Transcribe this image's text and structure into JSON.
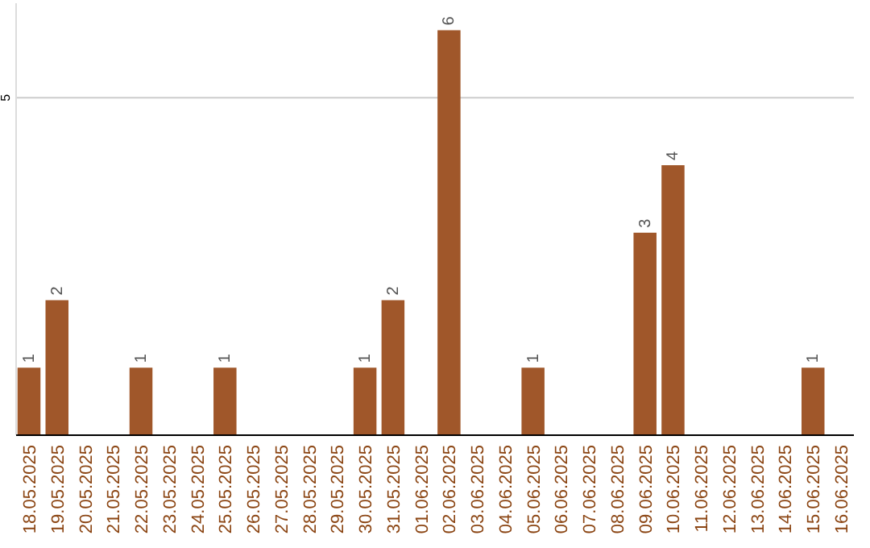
{
  "chart_data": {
    "type": "bar",
    "categories": [
      "18.05.2025",
      "19.05.2025",
      "20.05.2025",
      "21.05.2025",
      "22.05.2025",
      "23.05.2025",
      "24.05.2025",
      "25.05.2025",
      "26.05.2025",
      "27.05.2025",
      "28.05.2025",
      "29.05.2025",
      "30.05.2025",
      "31.05.2025",
      "01.06.2025",
      "02.06.2025",
      "03.06.2025",
      "04.06.2025",
      "05.06.2025",
      "06.06.2025",
      "07.06.2025",
      "08.06.2025",
      "09.06.2025",
      "10.06.2025",
      "11.06.2025",
      "12.06.2025",
      "13.06.2025",
      "14.06.2025",
      "15.06.2025",
      "16.06.2025"
    ],
    "values": [
      1,
      2,
      0,
      0,
      1,
      0,
      0,
      1,
      0,
      0,
      0,
      0,
      1,
      2,
      0,
      6,
      0,
      0,
      1,
      0,
      0,
      0,
      3,
      4,
      0,
      0,
      0,
      0,
      1,
      0
    ],
    "value_labels": [
      "1",
      "2",
      null,
      null,
      "1",
      null,
      null,
      "1",
      null,
      null,
      null,
      null,
      "1",
      "2",
      null,
      "6",
      null,
      null,
      "1",
      null,
      null,
      null,
      "3",
      "4",
      null,
      null,
      null,
      null,
      "1",
      null
    ],
    "color": "#a0572a",
    "ylim": [
      0,
      6.4
    ],
    "yticks": [
      5
    ],
    "grid": "y"
  }
}
